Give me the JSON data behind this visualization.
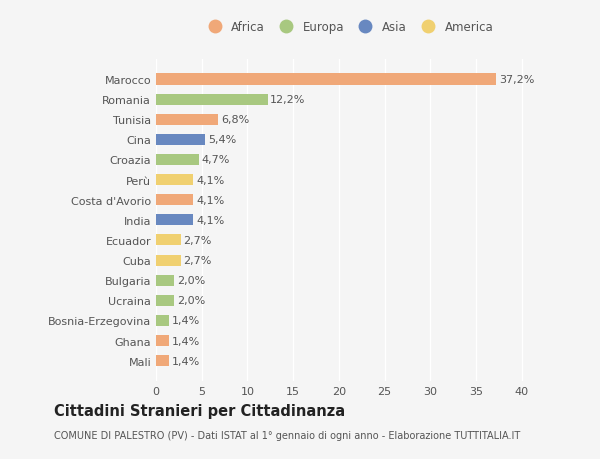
{
  "categories": [
    "Mali",
    "Ghana",
    "Bosnia-Erzegovina",
    "Ucraina",
    "Bulgaria",
    "Cuba",
    "Ecuador",
    "India",
    "Costa d'Avorio",
    "Perù",
    "Croazia",
    "Cina",
    "Tunisia",
    "Romania",
    "Marocco"
  ],
  "values": [
    1.4,
    1.4,
    1.4,
    2.0,
    2.0,
    2.7,
    2.7,
    4.1,
    4.1,
    4.1,
    4.7,
    5.4,
    6.8,
    12.2,
    37.2
  ],
  "labels": [
    "1,4%",
    "1,4%",
    "1,4%",
    "2,0%",
    "2,0%",
    "2,7%",
    "2,7%",
    "4,1%",
    "4,1%",
    "4,1%",
    "4,7%",
    "5,4%",
    "6,8%",
    "12,2%",
    "37,2%"
  ],
  "continents": [
    "Africa",
    "Africa",
    "Europa",
    "Europa",
    "Europa",
    "America",
    "America",
    "Asia",
    "Africa",
    "America",
    "Europa",
    "Asia",
    "Africa",
    "Europa",
    "Africa"
  ],
  "continent_colors": {
    "Africa": "#F0A878",
    "Europa": "#A8C880",
    "Asia": "#6888C0",
    "America": "#F0D070"
  },
  "legend_order": [
    "Africa",
    "Europa",
    "Asia",
    "America"
  ],
  "legend_colors": {
    "Africa": "#F0A878",
    "Europa": "#A8C880",
    "Asia": "#6888C0",
    "America": "#F0D070"
  },
  "xlim": [
    0,
    42
  ],
  "xticks": [
    0,
    5,
    10,
    15,
    20,
    25,
    30,
    35,
    40
  ],
  "title": "Cittadini Stranieri per Cittadinanza",
  "subtitle": "COMUNE DI PALESTRO (PV) - Dati ISTAT al 1° gennaio di ogni anno - Elaborazione TUTTITALIA.IT",
  "background_color": "#f5f5f5",
  "bar_height": 0.55,
  "label_fontsize": 8,
  "tick_fontsize": 8,
  "title_fontsize": 10.5,
  "subtitle_fontsize": 7,
  "legend_fontsize": 8.5
}
